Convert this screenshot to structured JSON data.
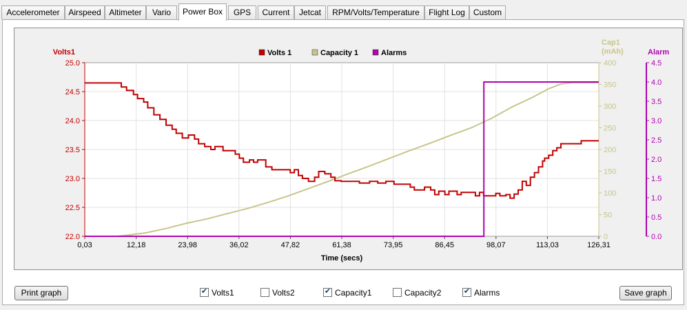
{
  "tabs": [
    {
      "label": "Accelerometer",
      "active": false
    },
    {
      "label": "Airspeed",
      "active": false
    },
    {
      "label": "Altimeter",
      "active": false
    },
    {
      "label": "Vario",
      "active": false
    },
    {
      "label": "Power Box",
      "active": true
    },
    {
      "label": "GPS",
      "active": false
    },
    {
      "label": "Current",
      "active": false
    },
    {
      "label": "Jetcat",
      "active": false
    },
    {
      "label": "RPM/Volts/Temperature",
      "active": false
    },
    {
      "label": "Flight Log",
      "active": false
    },
    {
      "label": "Custom",
      "active": false
    }
  ],
  "buttons": {
    "print": "Print graph",
    "save": "Save graph"
  },
  "checkboxes": [
    {
      "label": "Volts1",
      "checked": true
    },
    {
      "label": "Volts2",
      "checked": false
    },
    {
      "label": "Capacity1",
      "checked": true
    },
    {
      "label": "Capacity2",
      "checked": false
    },
    {
      "label": "Alarms",
      "checked": true
    }
  ],
  "colors": {
    "volts": "#c00000",
    "capacity": "#c8c48c",
    "alarms": "#b000b0",
    "capacity_axis": "#c8c48c"
  },
  "chart_data": {
    "type": "line",
    "xlabel": "Time (secs)",
    "x_ticks": [
      "0,03",
      "12,18",
      "23,98",
      "36,02",
      "47,82",
      "61,38",
      "73,95",
      "86,45",
      "98,07",
      "113,03",
      "126,31"
    ],
    "xlim": [
      0.03,
      126.31
    ],
    "grid": true,
    "legend": {
      "position": "top-center",
      "entries": [
        "Volts 1",
        "Capacity 1",
        "Alarms"
      ]
    },
    "axes": {
      "left": {
        "label": "Volts1",
        "range": [
          22.0,
          25.0
        ],
        "ticks": [
          "22.0",
          "22.5",
          "23.0",
          "23.5",
          "24.0",
          "24.5",
          "25.0"
        ]
      },
      "right1": {
        "label_line1": "Cap1",
        "label_line2": "(mAh)",
        "range": [
          0,
          400
        ],
        "ticks": [
          "0",
          "50",
          "100",
          "150",
          "200",
          "250",
          "300",
          "350",
          "400"
        ]
      },
      "right2": {
        "label": "Alarm",
        "range": [
          0.0,
          4.5
        ],
        "ticks": [
          "0.0",
          "0.5",
          "1.0",
          "1.5",
          "2.0",
          "2.5",
          "3.0",
          "3.5",
          "4.0",
          "4.5"
        ]
      }
    },
    "series": [
      {
        "name": "Volts 1",
        "axis": "left",
        "points": [
          [
            0.03,
            24.65
          ],
          [
            9,
            24.65
          ],
          [
            9,
            24.58
          ],
          [
            10.3,
            24.58
          ],
          [
            10.3,
            24.52
          ],
          [
            12,
            24.52
          ],
          [
            12,
            24.45
          ],
          [
            13,
            24.45
          ],
          [
            13,
            24.38
          ],
          [
            14.5,
            24.38
          ],
          [
            14.5,
            24.32
          ],
          [
            15.5,
            24.32
          ],
          [
            15.5,
            24.22
          ],
          [
            17,
            24.22
          ],
          [
            17,
            24.1
          ],
          [
            18.5,
            24.1
          ],
          [
            18.5,
            24.02
          ],
          [
            20,
            24.02
          ],
          [
            20,
            23.92
          ],
          [
            21.5,
            23.92
          ],
          [
            21.5,
            23.85
          ],
          [
            22.5,
            23.85
          ],
          [
            22.5,
            23.78
          ],
          [
            24,
            23.78
          ],
          [
            24,
            23.7
          ],
          [
            25.5,
            23.7
          ],
          [
            25.5,
            23.75
          ],
          [
            27,
            23.75
          ],
          [
            27,
            23.68
          ],
          [
            28,
            23.68
          ],
          [
            28,
            23.6
          ],
          [
            29.5,
            23.6
          ],
          [
            29.5,
            23.55
          ],
          [
            31,
            23.55
          ],
          [
            31,
            23.5
          ],
          [
            32,
            23.5
          ],
          [
            32,
            23.55
          ],
          [
            34,
            23.55
          ],
          [
            34,
            23.48
          ],
          [
            37,
            23.48
          ],
          [
            37,
            23.42
          ],
          [
            38,
            23.42
          ],
          [
            38,
            23.35
          ],
          [
            39,
            23.35
          ],
          [
            39,
            23.28
          ],
          [
            40.5,
            23.28
          ],
          [
            40.5,
            23.32
          ],
          [
            41.5,
            23.32
          ],
          [
            41.5,
            23.28
          ],
          [
            42.5,
            23.28
          ],
          [
            42.5,
            23.32
          ],
          [
            44.5,
            23.32
          ],
          [
            44.5,
            23.2
          ],
          [
            46,
            23.2
          ],
          [
            46,
            23.15
          ],
          [
            50.5,
            23.15
          ],
          [
            50.5,
            23.1
          ],
          [
            51.5,
            23.1
          ],
          [
            51.5,
            23.15
          ],
          [
            52.5,
            23.15
          ],
          [
            52.5,
            23.05
          ],
          [
            53.5,
            23.05
          ],
          [
            53.5,
            23.0
          ],
          [
            55,
            23.0
          ],
          [
            55,
            22.95
          ],
          [
            56.5,
            22.95
          ],
          [
            56.5,
            23.02
          ],
          [
            57.5,
            23.02
          ],
          [
            57.5,
            23.12
          ],
          [
            59,
            23.12
          ],
          [
            59,
            23.08
          ],
          [
            60.5,
            23.08
          ],
          [
            60.5,
            23.02
          ],
          [
            61.5,
            23.02
          ],
          [
            61.5,
            22.96
          ],
          [
            63,
            22.96
          ],
          [
            63,
            22.95
          ],
          [
            67.5,
            22.95
          ],
          [
            67.5,
            22.92
          ],
          [
            70,
            22.92
          ],
          [
            70,
            22.95
          ],
          [
            72,
            22.95
          ],
          [
            72,
            22.92
          ],
          [
            74,
            22.92
          ],
          [
            74,
            22.95
          ],
          [
            76,
            22.95
          ],
          [
            76,
            22.9
          ],
          [
            80,
            22.9
          ],
          [
            80,
            22.85
          ],
          [
            81,
            22.85
          ],
          [
            81,
            22.8
          ],
          [
            83.5,
            22.8
          ],
          [
            83.5,
            22.85
          ],
          [
            85,
            22.85
          ],
          [
            85,
            22.8
          ],
          [
            86,
            22.8
          ],
          [
            86,
            22.72
          ],
          [
            87,
            22.72
          ],
          [
            87,
            22.78
          ],
          [
            88.5,
            22.78
          ],
          [
            88.5,
            22.72
          ],
          [
            89.5,
            22.72
          ],
          [
            89.5,
            22.78
          ],
          [
            91.5,
            22.78
          ],
          [
            91.5,
            22.72
          ],
          [
            92.5,
            22.72
          ],
          [
            92.5,
            22.76
          ],
          [
            96,
            22.76
          ],
          [
            96,
            22.7
          ],
          [
            97,
            22.7
          ],
          [
            97,
            22.76
          ],
          [
            98,
            22.76
          ],
          [
            98,
            22.7
          ],
          [
            101,
            22.7
          ],
          [
            101,
            22.74
          ],
          [
            102,
            22.74
          ],
          [
            102,
            22.7
          ],
          [
            103.5,
            22.7
          ],
          [
            103.5,
            22.72
          ],
          [
            104.5,
            22.72
          ],
          [
            104.5,
            22.66
          ],
          [
            105.5,
            22.66
          ],
          [
            105.5,
            22.73
          ],
          [
            106.5,
            22.73
          ],
          [
            106.5,
            22.8
          ],
          [
            107.5,
            22.8
          ],
          [
            107.5,
            22.95
          ],
          [
            108.5,
            22.95
          ],
          [
            108.5,
            22.88
          ],
          [
            109.5,
            22.88
          ],
          [
            109.5,
            23.02
          ],
          [
            110.5,
            23.02
          ],
          [
            110.5,
            23.1
          ],
          [
            111.5,
            23.1
          ],
          [
            111.5,
            23.2
          ],
          [
            112.5,
            23.2
          ],
          [
            112.5,
            23.3
          ],
          [
            113,
            23.3
          ],
          [
            113,
            23.35
          ],
          [
            114,
            23.35
          ],
          [
            114,
            23.4
          ],
          [
            115,
            23.4
          ],
          [
            115,
            23.48
          ],
          [
            116,
            23.48
          ],
          [
            116,
            23.53
          ],
          [
            117,
            23.53
          ],
          [
            117,
            23.6
          ],
          [
            122,
            23.6
          ],
          [
            122,
            23.65
          ],
          [
            126.31,
            23.65
          ]
        ]
      },
      {
        "name": "Capacity 1",
        "axis": "right1",
        "points": [
          [
            0.03,
            0
          ],
          [
            8,
            0
          ],
          [
            10,
            2
          ],
          [
            15,
            8
          ],
          [
            20,
            18
          ],
          [
            25,
            30
          ],
          [
            30,
            40
          ],
          [
            35,
            52
          ],
          [
            40,
            64
          ],
          [
            45,
            78
          ],
          [
            50,
            93
          ],
          [
            55,
            110
          ],
          [
            60,
            127
          ],
          [
            65,
            145
          ],
          [
            70,
            162
          ],
          [
            75,
            180
          ],
          [
            80,
            198
          ],
          [
            85,
            215
          ],
          [
            90,
            233
          ],
          [
            95,
            250
          ],
          [
            100,
            272
          ],
          [
            105,
            298
          ],
          [
            110,
            320
          ],
          [
            114,
            340
          ],
          [
            117,
            351
          ],
          [
            120,
            354
          ],
          [
            126.31,
            354
          ]
        ]
      },
      {
        "name": "Alarms",
        "axis": "right2",
        "points": [
          [
            0.03,
            0
          ],
          [
            98.07,
            0
          ],
          [
            98.07,
            4.0
          ],
          [
            126.31,
            4.0
          ]
        ]
      }
    ]
  }
}
